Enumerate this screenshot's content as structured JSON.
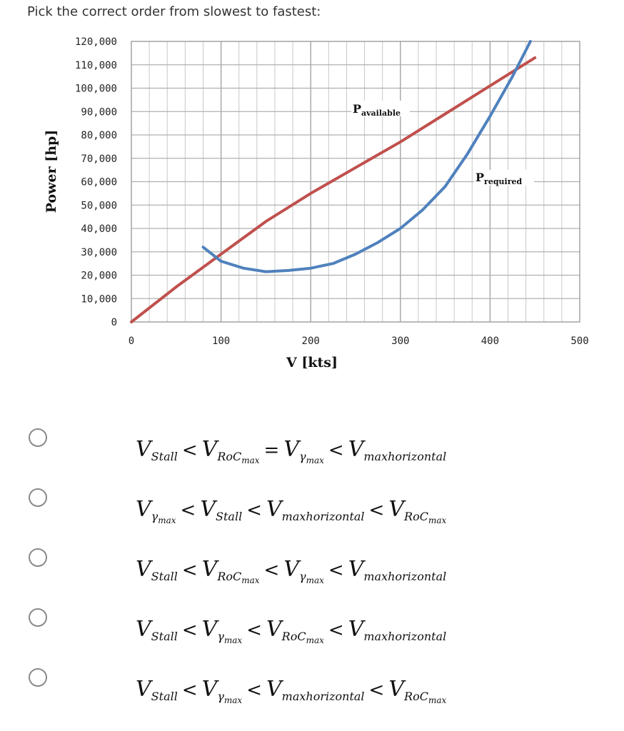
{
  "question": "Pick the correct order from slowest to fastest:",
  "chart_data": {
    "type": "line",
    "xlabel": "V [kts]",
    "ylabel": "Power [hp]",
    "xlim": [
      0,
      500
    ],
    "ylim": [
      0,
      120000
    ],
    "x_ticks": [
      0,
      100,
      200,
      300,
      400,
      500
    ],
    "y_ticks": [
      0,
      10000,
      20000,
      30000,
      40000,
      50000,
      60000,
      70000,
      80000,
      90000,
      100000,
      110000,
      120000
    ],
    "x_tick_labels": [
      "0",
      "100",
      "200",
      "300",
      "400",
      "500"
    ],
    "y_tick_labels": [
      "0",
      "10,000",
      "20,000",
      "30,000",
      "40,000",
      "50,000",
      "60,000",
      "70,000",
      "80,000",
      "90,000",
      "100,000",
      "110,000",
      "120,000"
    ],
    "grid": true,
    "colors": {
      "available": "#c0504d",
      "required": "#4f81bd"
    },
    "series": [
      {
        "name": "Pavailable",
        "label": "Pavailable",
        "x": [
          0,
          50,
          100,
          150,
          200,
          250,
          300,
          350,
          400,
          450
        ],
        "y": [
          0,
          15000,
          29000,
          43000,
          55000,
          66000,
          77000,
          89000,
          101000,
          113000
        ]
      },
      {
        "name": "Prequired",
        "label": "Prequired",
        "x": [
          80,
          100,
          125,
          150,
          175,
          200,
          225,
          250,
          275,
          300,
          325,
          350,
          375,
          400,
          425,
          445
        ],
        "y": [
          32000,
          26000,
          23000,
          21500,
          22000,
          23000,
          25000,
          29000,
          34000,
          40000,
          48000,
          58000,
          72000,
          88000,
          105000,
          120000
        ]
      }
    ]
  },
  "options": [
    [
      {
        "v": "V",
        "s": "Stall"
      },
      {
        "op": "<"
      },
      {
        "v": "V",
        "s": "RoC",
        "ss": "max"
      },
      {
        "op": "="
      },
      {
        "v": "V",
        "s": "γ",
        "ss": "max"
      },
      {
        "op": "<"
      },
      {
        "v": "V",
        "s": "maxhorizontal"
      }
    ],
    [
      {
        "v": "V",
        "s": "γ",
        "ss": "max"
      },
      {
        "op": "<"
      },
      {
        "v": "V",
        "s": "Stall"
      },
      {
        "op": "<"
      },
      {
        "v": "V",
        "s": "maxhorizontal"
      },
      {
        "op": "<"
      },
      {
        "v": "V",
        "s": "RoC",
        "ss": "max"
      }
    ],
    [
      {
        "v": "V",
        "s": "Stall"
      },
      {
        "op": "<"
      },
      {
        "v": "V",
        "s": "RoC",
        "ss": "max"
      },
      {
        "op": "<"
      },
      {
        "v": "V",
        "s": "γ",
        "ss": "max"
      },
      {
        "op": "<"
      },
      {
        "v": "V",
        "s": "maxhorizontal"
      }
    ],
    [
      {
        "v": "V",
        "s": "Stall"
      },
      {
        "op": "<"
      },
      {
        "v": "V",
        "s": "γ",
        "ss": "max"
      },
      {
        "op": "<"
      },
      {
        "v": "V",
        "s": "RoC",
        "ss": "max"
      },
      {
        "op": "<"
      },
      {
        "v": "V",
        "s": "maxhorizontal"
      }
    ],
    [
      {
        "v": "V",
        "s": "Stall"
      },
      {
        "op": "<"
      },
      {
        "v": "V",
        "s": "γ",
        "ss": "max"
      },
      {
        "op": "<"
      },
      {
        "v": "V",
        "s": "maxhorizontal"
      },
      {
        "op": "<"
      },
      {
        "v": "V",
        "s": "RoC",
        "ss": "max"
      }
    ]
  ]
}
